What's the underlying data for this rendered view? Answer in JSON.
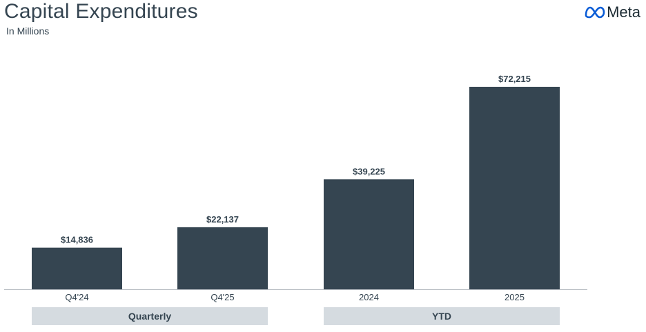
{
  "header": {
    "title": "Capital Expenditures",
    "subtitle": "In Millions",
    "logo_text": "Meta",
    "logo_icon": "meta-infinity-icon"
  },
  "colors": {
    "bar": "#354551",
    "group_band": "#d5dbe0",
    "axis": "#b7bcc1",
    "logo_blue": "#0a5cd6"
  },
  "chart_data": {
    "type": "bar",
    "title": "Capital Expenditures",
    "subtitle": "In Millions",
    "categories": [
      "Q4'24",
      "Q4'25",
      "2024",
      "2025"
    ],
    "values": [
      14836,
      22137,
      39225,
      72215
    ],
    "value_labels": [
      "$14,836",
      "$22,137",
      "$39,225",
      "$72,215"
    ],
    "groups": [
      {
        "label": "Quarterly",
        "categories": [
          "Q4'24",
          "Q4'25"
        ]
      },
      {
        "label": "YTD",
        "categories": [
          "2024",
          "2025"
        ]
      }
    ],
    "ylim": [
      0,
      72215
    ],
    "grid": false,
    "legend": "none",
    "xlabel": "",
    "ylabel": ""
  }
}
